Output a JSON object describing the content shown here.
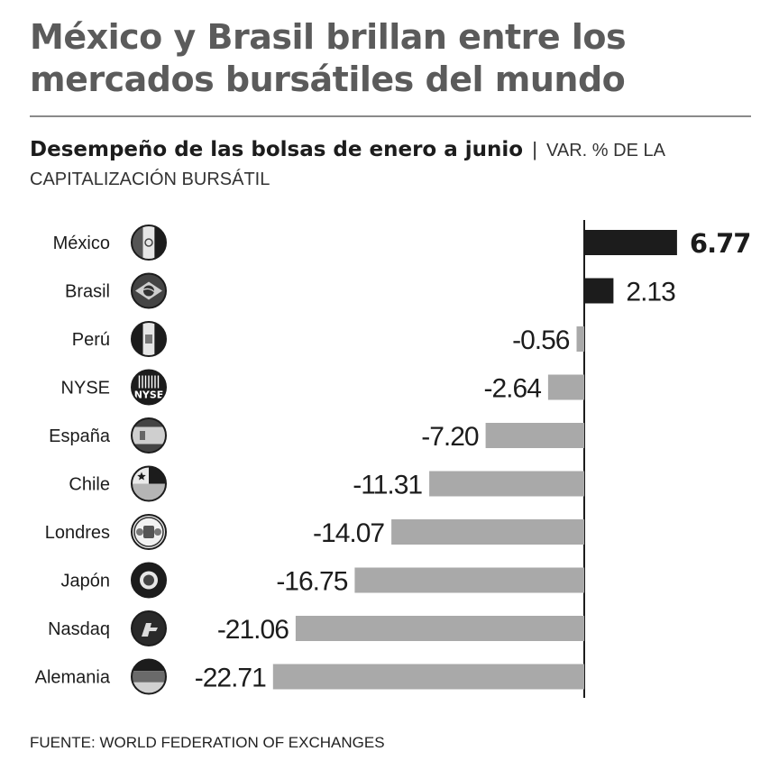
{
  "title_line1": "México y Brasil brillan entre los",
  "title_line2": "mercados bursátiles del mundo",
  "subtitle_bold": "Desempeño de las bolsas de enero a junio",
  "subtitle_separator": "|",
  "subtitle_light_1": "VAR. % DE LA",
  "subtitle_light_2": "CAPITALIZACIÓN BURSÁTIL",
  "source": "FUENTE: WORLD FEDERATION OF EXCHANGES",
  "colors": {
    "positive": "#1c1c1c",
    "negative": "#a9a9a9",
    "axis": "#1c1c1c",
    "title": "#5b5b5b"
  },
  "chart_data": {
    "type": "bar",
    "orientation": "horizontal",
    "title": "Desempeño de las bolsas de enero a junio",
    "unit": "VAR. % DE LA CAPITALIZACIÓN BURSÁTIL",
    "categories": [
      "México",
      "Brasil",
      "Perú",
      "NYSE",
      "España",
      "Chile",
      "Londres",
      "Japón",
      "Nasdaq",
      "Alemania"
    ],
    "values": [
      6.77,
      2.13,
      -0.56,
      -2.64,
      -7.2,
      -11.31,
      -14.07,
      -16.75,
      -21.06,
      -22.71
    ],
    "value_labels": [
      "6.77",
      "2.13",
      "-0.56",
      "-2.64",
      "-7.20",
      "-11.31",
      "-14.07",
      "-16.75",
      "-21.06",
      "-22.71"
    ],
    "icons": [
      "mexico-flag-icon",
      "brasil-flag-icon",
      "peru-flag-icon",
      "nyse-logo-icon",
      "espana-flag-icon",
      "chile-flag-icon",
      "londres-crest-icon",
      "japon-flag-icon",
      "nasdaq-logo-icon",
      "alemania-flag-icon"
    ],
    "icon_text": {
      "nyse-logo-icon": "NYSE"
    },
    "highlight": "México",
    "xlim": [
      -22.71,
      6.77
    ]
  }
}
